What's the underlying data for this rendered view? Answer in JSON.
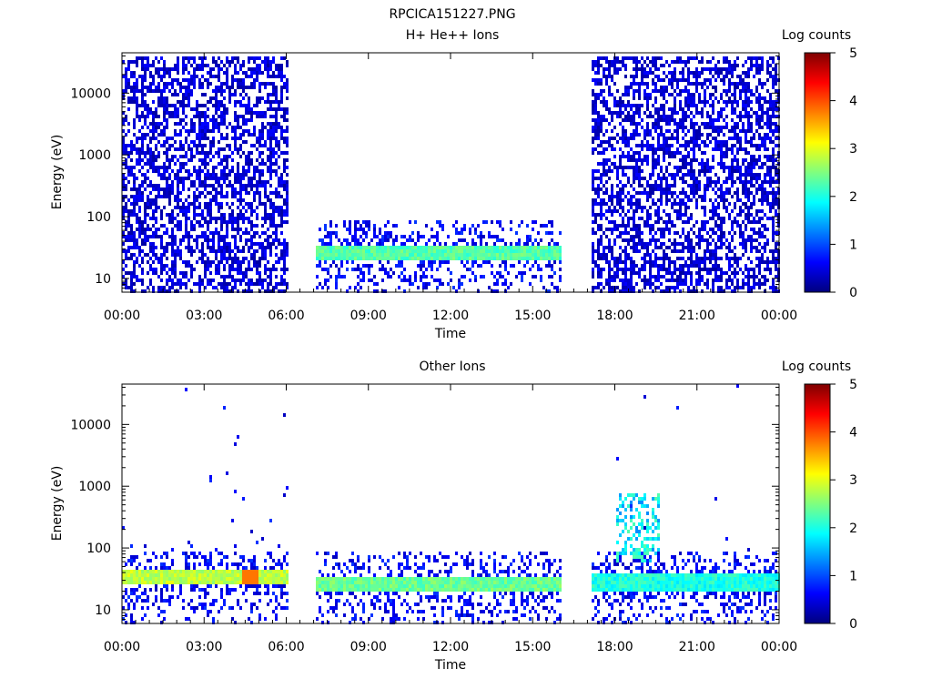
{
  "figure": {
    "title": "RPCICA151227.PNG"
  },
  "colormap": [
    "#00007f",
    "#0000ff",
    "#007fff",
    "#00ffff",
    "#7fff7f",
    "#ffff00",
    "#ff7f00",
    "#ff0000",
    "#7f0000"
  ],
  "chart_data": [
    {
      "type": "heatmap",
      "title": "H+ He++ Ions",
      "xlabel": "Time",
      "ylabel": "Energy (eV)",
      "x_ticks": [
        "00:00",
        "03:00",
        "06:00",
        "09:00",
        "12:00",
        "15:00",
        "18:00",
        "21:00",
        "00:00"
      ],
      "x_range_hours": [
        0,
        24
      ],
      "y_scale": "log",
      "y_range": [
        6,
        45000
      ],
      "y_ticks": [
        "10",
        "100",
        "1000",
        "10000"
      ],
      "colorbar": {
        "label": "Log counts",
        "range": [
          0,
          5
        ],
        "ticks": [
          "0",
          "1",
          "2",
          "3",
          "4",
          "5"
        ]
      },
      "data_gaps_hours": [
        [
          6.0,
          7.0
        ],
        [
          16.0,
          17.1
        ]
      ],
      "segments": [
        {
          "start_hour": 0.0,
          "end_hour": 6.0,
          "energy_range_eV": [
            6,
            45000
          ],
          "typical_log_counts": 0.3,
          "description_level": "sparse noise"
        },
        {
          "start_hour": 7.0,
          "end_hour": 16.0,
          "energy_range_eV": [
            6,
            100
          ],
          "band_center_eV": 28,
          "band_log_counts": 2.3
        },
        {
          "start_hour": 17.1,
          "end_hour": 24.0,
          "energy_range_eV": [
            6,
            45000
          ],
          "typical_log_counts": 0.3
        }
      ]
    },
    {
      "type": "heatmap",
      "title": "Other Ions",
      "xlabel": "Time",
      "ylabel": "Energy (eV)",
      "x_ticks": [
        "00:00",
        "03:00",
        "06:00",
        "09:00",
        "12:00",
        "15:00",
        "18:00",
        "21:00",
        "00:00"
      ],
      "x_range_hours": [
        0,
        24
      ],
      "y_scale": "log",
      "y_range": [
        6,
        45000
      ],
      "y_ticks": [
        "10",
        "100",
        "1000",
        "10000"
      ],
      "colorbar": {
        "label": "Log counts",
        "range": [
          0,
          5
        ],
        "ticks": [
          "0",
          "1",
          "2",
          "3",
          "4",
          "5"
        ]
      },
      "data_gaps_hours": [
        [
          6.0,
          7.0
        ],
        [
          16.0,
          17.1
        ]
      ],
      "segments": [
        {
          "start_hour": 0.0,
          "end_hour": 6.0,
          "band_center_eV": 35,
          "band_log_counts": 2.8,
          "peak_hour": 4.6,
          "peak_log_counts": 3.8
        },
        {
          "start_hour": 7.0,
          "end_hour": 16.0,
          "energy_range_eV": [
            6,
            100
          ],
          "band_center_eV": 28,
          "band_log_counts": 2.4
        },
        {
          "start_hour": 17.1,
          "end_hour": 24.0,
          "band_center_eV": 30,
          "band_log_counts": 2.0,
          "burst_hours": [
            18.4,
            19.2
          ]
        }
      ]
    }
  ]
}
